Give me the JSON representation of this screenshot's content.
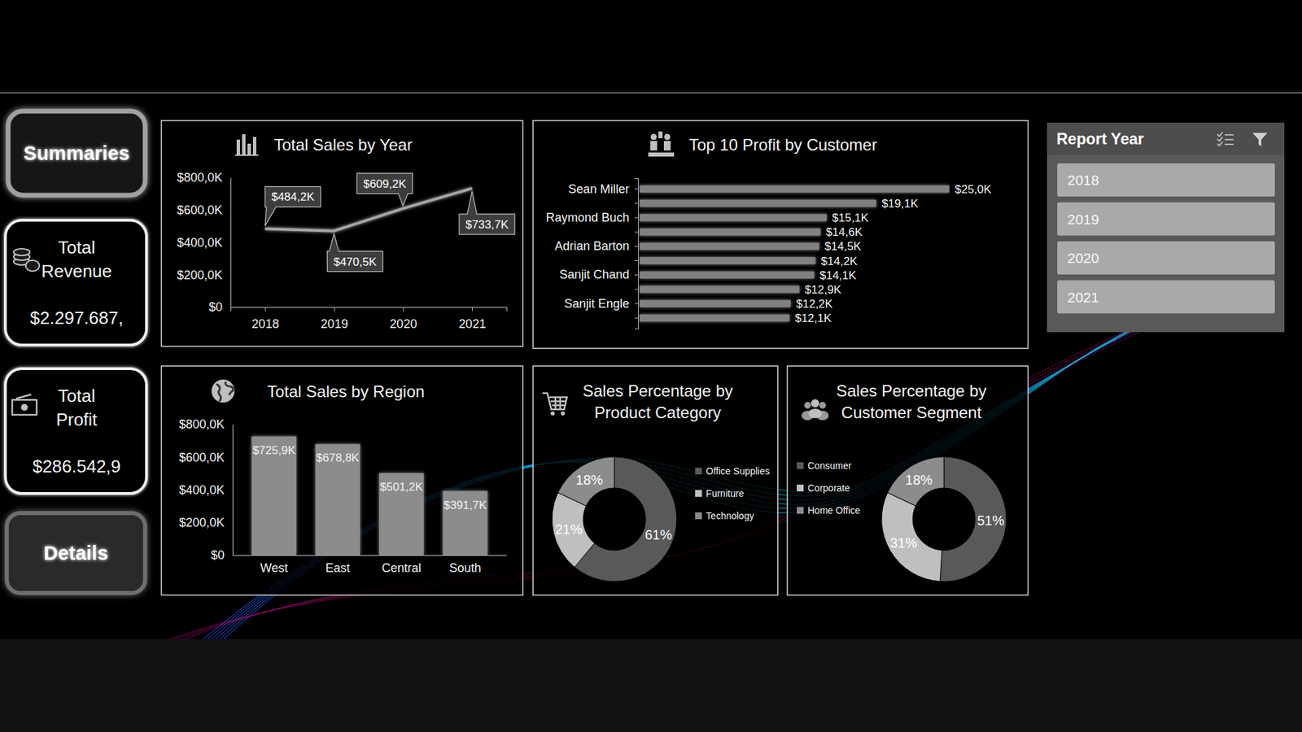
{
  "nav": {
    "summaries": "Summaries",
    "details": "Details"
  },
  "kpis": [
    {
      "label": "Total Revenue",
      "value": "$2.297.687,"
    },
    {
      "label": "Total Profit",
      "value": "$286.542,9"
    }
  ],
  "slicer": {
    "title": "Report Year",
    "items": [
      "2018",
      "2019",
      "2020",
      "2021"
    ]
  },
  "chart_data": [
    {
      "type": "line",
      "title": "Total Sales by Year",
      "categories": [
        "2018",
        "2019",
        "2020",
        "2021"
      ],
      "values": [
        484.2,
        470.5,
        609.2,
        733.7
      ],
      "value_labels": [
        "$484,2K",
        "$470,5K",
        "$609,2K",
        "$733,7K"
      ],
      "data_labels": true,
      "color": "#a6a6a6",
      "ylim": [
        0,
        800
      ],
      "yticks": [
        {
          "value": 0,
          "label": "$0"
        },
        {
          "value": 200,
          "label": "$200,0K"
        },
        {
          "value": 400,
          "label": "$400,0K"
        },
        {
          "value": 600,
          "label": "$600,0K"
        },
        {
          "value": 800,
          "label": "$800,0K"
        }
      ]
    },
    {
      "type": "bar",
      "orientation": "horizontal",
      "title": "Top 10 Profit by Customer",
      "categories": [
        "Sean Miller",
        null,
        "Raymond Buch",
        null,
        "Adrian Barton",
        null,
        "Sanjit Chand",
        null,
        "Sanjit Engle",
        null
      ],
      "values": [
        25.0,
        19.1,
        15.1,
        14.6,
        14.5,
        14.2,
        14.1,
        12.9,
        12.2,
        12.1
      ],
      "value_labels": [
        "$25,0K",
        "$19,1K",
        "$15,1K",
        "$14,6K",
        "$14,5K",
        "$14,2K",
        "$14,1K",
        "$12,9K",
        "$12,2K",
        "$12,1K"
      ],
      "data_labels": true,
      "color": "#808080",
      "xlim": [
        0,
        25
      ],
      "tick_labels": "y"
    },
    {
      "type": "bar",
      "title": "Total Sales by Region",
      "categories": [
        "West",
        "East",
        "Central",
        "South"
      ],
      "values": [
        725.9,
        678.8,
        501.2,
        391.7
      ],
      "value_labels": [
        "$725,9K",
        "$678,8K",
        "$501,2K",
        "$391,7K"
      ],
      "data_labels": true,
      "color": "#8c8c8c",
      "ylim": [
        0,
        800
      ],
      "yticks": [
        {
          "value": 0,
          "label": "$0"
        },
        {
          "value": 200,
          "label": "$200,0K"
        },
        {
          "value": 400,
          "label": "$400,0K"
        },
        {
          "value": 600,
          "label": "$600,0K"
        },
        {
          "value": 800,
          "label": "$800,0K"
        }
      ]
    },
    {
      "type": "pie",
      "title": "Sales Percentage by Product Category",
      "categories": [
        "Office Supplies",
        "Furniture",
        "Technology"
      ],
      "values": [
        61,
        21,
        18
      ],
      "value_labels": [
        "61%",
        "21%",
        "18%"
      ],
      "colors": [
        "#595959",
        "#bfbfbf",
        "#8c8c8c"
      ],
      "data_labels": true,
      "legend": "right"
    },
    {
      "type": "pie",
      "title": "Sales Percentage by Customer Segment",
      "categories": [
        "Consumer",
        "Corporate",
        "Home Office"
      ],
      "values": [
        51,
        31,
        18
      ],
      "value_labels": [
        "51%",
        "31%",
        "18%"
      ],
      "colors": [
        "#595959",
        "#bfbfbf",
        "#8c8c8c"
      ],
      "data_labels": true,
      "legend": "left"
    }
  ]
}
